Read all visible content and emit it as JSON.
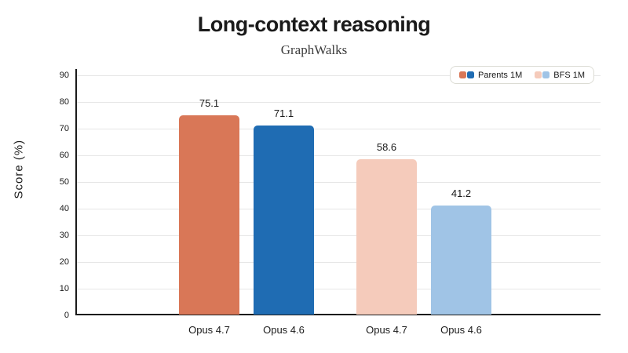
{
  "title": "Long-context reasoning",
  "subtitle": "GraphWalks",
  "chart_data": {
    "type": "bar",
    "title": "Long-context reasoning",
    "subtitle": "GraphWalks",
    "categories": [
      "Opus 4.7",
      "Opus 4.6",
      "Opus 4.7",
      "Opus 4.6"
    ],
    "values": [
      75.1,
      71.1,
      58.6,
      41.2
    ],
    "value_labels": [
      "75.1",
      "71.1",
      "58.6",
      "41.2"
    ],
    "bar_colors": [
      "#D97757",
      "#1F6CB3",
      "#F5CBBB",
      "#A0C4E6"
    ],
    "xlabel": "",
    "ylabel": "Score (%)",
    "ylim": [
      0,
      90
    ],
    "ytick_step": 10,
    "ytick_labels": [
      "0",
      "10",
      "20",
      "30",
      "40",
      "50",
      "60",
      "70",
      "80",
      "90"
    ],
    "grid": true,
    "legend": {
      "position": "top-right",
      "entries": [
        {
          "label": "Parents 1M",
          "colors": [
            "#D97757",
            "#1F6CB3"
          ]
        },
        {
          "label": "BFS 1M",
          "colors": [
            "#F5CBBB",
            "#A0C4E6"
          ]
        }
      ]
    },
    "colors": {
      "axis": "#1a1a1a",
      "gridline": "#e6e6e6",
      "background": "#ffffff",
      "text": "#1a1a1a"
    }
  }
}
